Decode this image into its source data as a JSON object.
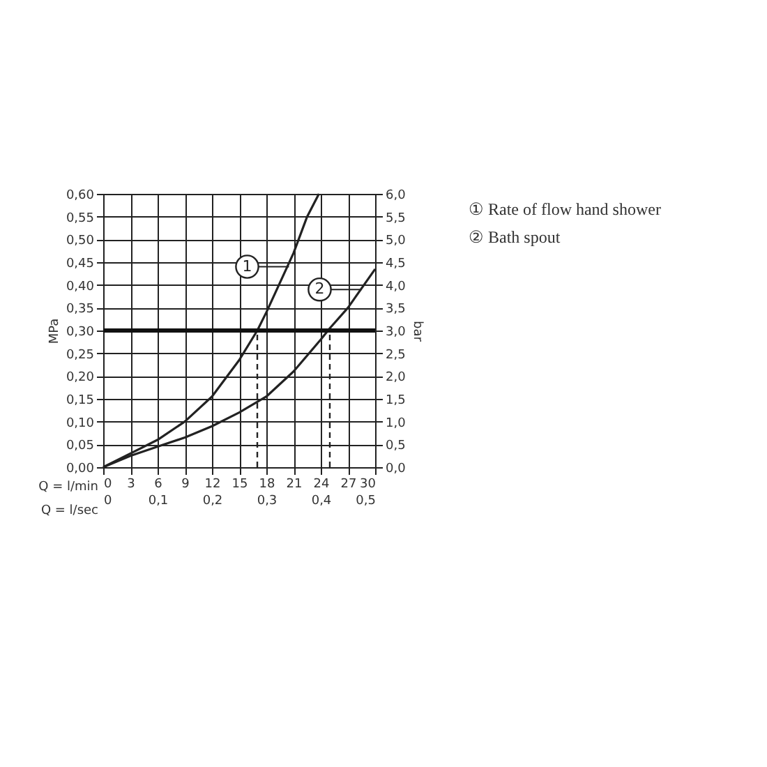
{
  "chart_data": {
    "type": "line",
    "xlabel": "Q = l/min",
    "ylabel": "MPa",
    "y2label": "bar",
    "x2label": "Q = l/sec",
    "xlim": [
      0,
      30
    ],
    "xticks": [
      0,
      3,
      6,
      9,
      12,
      15,
      18,
      21,
      24,
      27,
      30
    ],
    "x2lim": [
      0,
      0.5
    ],
    "x2ticks": [
      0,
      {
        "value": 0.1,
        "label": "0,1"
      },
      {
        "value": 0.2,
        "label": "0,2"
      },
      {
        "value": 0.3,
        "label": "0,3"
      },
      {
        "value": 0.4,
        "label": "0,4"
      },
      {
        "value": 0.5,
        "label": "0,5"
      }
    ],
    "ylim": [
      0,
      0.6
    ],
    "yticks": [
      {
        "value": 0,
        "label": "0,00"
      },
      {
        "value": 0.05,
        "label": "0,05"
      },
      {
        "value": 0.1,
        "label": "0,10"
      },
      {
        "value": 0.15,
        "label": "0,15"
      },
      {
        "value": 0.2,
        "label": "0,20"
      },
      {
        "value": 0.25,
        "label": "0,25"
      },
      {
        "value": 0.3,
        "label": "0,30"
      },
      {
        "value": 0.35,
        "label": "0,35"
      },
      {
        "value": 0.4,
        "label": "0,40"
      },
      {
        "value": 0.45,
        "label": "0,45"
      },
      {
        "value": 0.5,
        "label": "0,50"
      },
      {
        "value": 0.55,
        "label": "0,55"
      },
      {
        "value": 0.6,
        "label": "0,60"
      }
    ],
    "y2lim": [
      0,
      6
    ],
    "y2ticks": [
      {
        "value": 0,
        "label": "0,0"
      },
      {
        "value": 0.5,
        "label": "0,5"
      },
      {
        "value": 1,
        "label": "1,0"
      },
      {
        "value": 1.5,
        "label": "1,5"
      },
      {
        "value": 2,
        "label": "2,0"
      },
      {
        "value": 2.5,
        "label": "2,5"
      },
      {
        "value": 3,
        "label": "3,0"
      },
      {
        "value": 3.5,
        "label": "3,5"
      },
      {
        "value": 4,
        "label": "4,0"
      },
      {
        "value": 4.5,
        "label": "4,5"
      },
      {
        "value": 5,
        "label": "5,0"
      },
      {
        "value": 5.5,
        "label": "5,5"
      },
      {
        "value": 6,
        "label": "6,0"
      }
    ],
    "grid": true,
    "legend": "right",
    "line_style": "solid",
    "series": [
      {
        "name": "① Rate of flow hand shower",
        "color": "#222222",
        "x": [
          0,
          3,
          6,
          9,
          12,
          15,
          17,
          18,
          21,
          22.5,
          23.8
        ],
        "values": [
          0,
          0.03,
          0.06,
          0.1,
          0.155,
          0.235,
          0.3,
          0.34,
          0.47,
          0.55,
          0.6
        ]
      },
      {
        "name": "② Bath spout",
        "color": "#222222",
        "x": [
          0,
          3,
          6,
          9,
          12,
          15,
          18,
          21,
          24,
          25,
          27,
          30
        ],
        "values": [
          0,
          0.025,
          0.045,
          0.065,
          0.09,
          0.12,
          0.155,
          0.21,
          0.28,
          0.305,
          0.35,
          0.435
        ]
      }
    ],
    "ref_lines": [
      {
        "axis": "y",
        "value": 0.3,
        "color": "#111111",
        "line_style": "solid"
      },
      {
        "axis": "x",
        "value": 17,
        "color": "#222222",
        "line_style": "dashed"
      },
      {
        "axis": "x",
        "value": 25,
        "color": "#222222",
        "line_style": "dashed"
      }
    ],
    "annotations": [
      {
        "text": "1",
        "x": 20.5,
        "y": 0.44
      },
      {
        "text": "2",
        "x": 28.5,
        "y": 0.39
      }
    ]
  }
}
